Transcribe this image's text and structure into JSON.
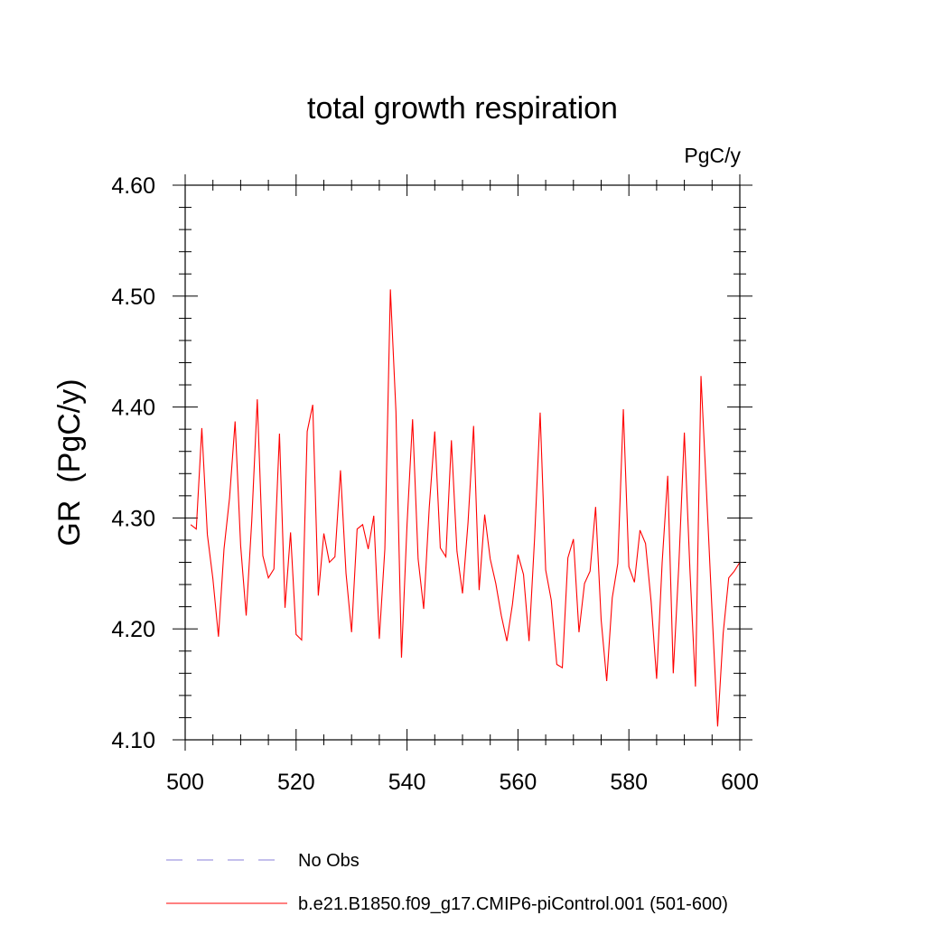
{
  "chart_data": {
    "type": "line",
    "title": "total growth respiration",
    "units": "PgC/y",
    "ylabel": "GR  (PgC/y)",
    "xlabel": "",
    "xlim": [
      500,
      600
    ],
    "ylim": [
      4.1,
      4.6
    ],
    "xticks": [
      500,
      520,
      540,
      560,
      580,
      600
    ],
    "xtick_labels": [
      "500",
      "520",
      "540",
      "560",
      "580",
      "600"
    ],
    "yticks": [
      4.1,
      4.2,
      4.3,
      4.4,
      4.5,
      4.6
    ],
    "ytick_labels": [
      "4.10",
      "4.20",
      "4.30",
      "4.40",
      "4.50",
      "4.60"
    ],
    "grid": false,
    "series": [
      {
        "name": "b.e21.B1850.f09_g17.CMIP6-piControl.001 (501-600)",
        "color": "#ff0000",
        "style": "solid",
        "x": [
          501,
          502,
          503,
          504,
          505,
          506,
          507,
          508,
          509,
          510,
          511,
          512,
          513,
          514,
          515,
          516,
          517,
          518,
          519,
          520,
          521,
          522,
          523,
          524,
          525,
          526,
          527,
          528,
          529,
          530,
          531,
          532,
          533,
          534,
          535,
          536,
          537,
          538,
          539,
          540,
          541,
          542,
          543,
          544,
          545,
          546,
          547,
          548,
          549,
          550,
          551,
          552,
          553,
          554,
          555,
          556,
          557,
          558,
          559,
          560,
          561,
          562,
          563,
          564,
          565,
          566,
          567,
          568,
          569,
          570,
          571,
          572,
          573,
          574,
          575,
          576,
          577,
          578,
          579,
          580,
          581,
          582,
          583,
          584,
          585,
          586,
          587,
          588,
          589,
          590,
          591,
          592,
          593,
          594,
          595,
          596,
          597,
          598,
          599,
          600
        ],
        "y": [
          4.294,
          4.29,
          4.381,
          4.285,
          4.245,
          4.193,
          4.272,
          4.318,
          4.387,
          4.275,
          4.212,
          4.297,
          4.407,
          4.266,
          4.246,
          4.254,
          4.376,
          4.219,
          4.287,
          4.195,
          4.19,
          4.378,
          4.402,
          4.23,
          4.286,
          4.26,
          4.265,
          4.343,
          4.25,
          4.197,
          4.29,
          4.294,
          4.272,
          4.302,
          4.191,
          4.272,
          4.506,
          4.396,
          4.174,
          4.294,
          4.389,
          4.263,
          4.218,
          4.309,
          4.378,
          4.273,
          4.265,
          4.37,
          4.27,
          4.232,
          4.296,
          4.383,
          4.235,
          4.303,
          4.263,
          4.241,
          4.212,
          4.189,
          4.222,
          4.267,
          4.249,
          4.189,
          4.282,
          4.395,
          4.253,
          4.226,
          4.168,
          4.165,
          4.264,
          4.281,
          4.197,
          4.241,
          4.252,
          4.31,
          4.208,
          4.153,
          4.228,
          4.259,
          4.398,
          4.256,
          4.242,
          4.289,
          4.277,
          4.225,
          4.155,
          4.26,
          4.338,
          4.16,
          4.257,
          4.377,
          4.254,
          4.148,
          4.428,
          4.323,
          4.215,
          4.112,
          4.196,
          4.246,
          4.252,
          4.26
        ]
      }
    ],
    "legend": [
      {
        "label": "No Obs",
        "color": "#8a7fd8",
        "style": "dashed"
      },
      {
        "label": "b.e21.B1850.f09_g17.CMIP6-piControl.001 (501-600)",
        "color": "#ff0000",
        "style": "solid"
      }
    ],
    "legend_position": "bottom"
  }
}
